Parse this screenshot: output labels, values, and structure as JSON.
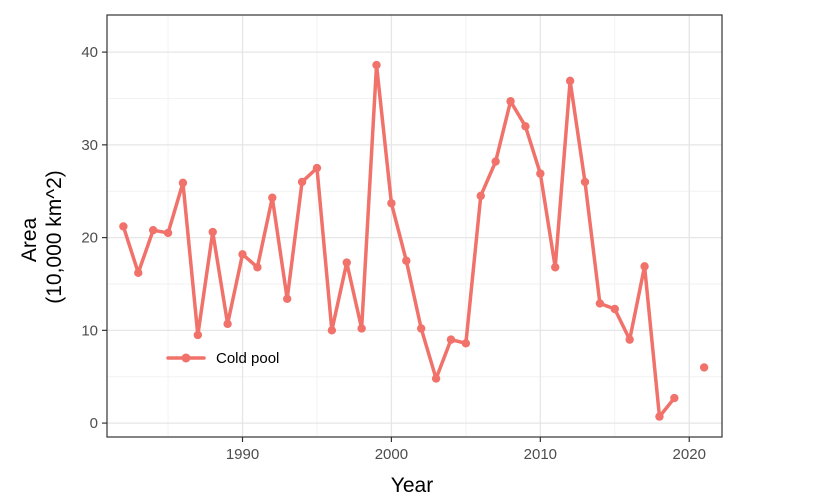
{
  "chart_data": {
    "type": "line",
    "xlabel": "Year",
    "ylabel_lines": [
      "Area",
      "(10,000 km^2)"
    ],
    "xlim": [
      1980.9,
      2022.2
    ],
    "ylim": [
      -1.5,
      44
    ],
    "x_ticks": [
      1990,
      2000,
      2010,
      2020
    ],
    "y_ticks": [
      0,
      10,
      20,
      30,
      40
    ],
    "grid": true,
    "legend_position": "bottom-left inside",
    "series": [
      {
        "name": "Cold pool",
        "color": "#f0726a",
        "segments": [
          [
            [
              1982,
              21.2
            ],
            [
              1983,
              16.2
            ],
            [
              1984,
              20.8
            ],
            [
              1985,
              20.5
            ],
            [
              1986,
              25.9
            ],
            [
              1987,
              9.5
            ],
            [
              1988,
              20.6
            ],
            [
              1989,
              10.7
            ],
            [
              1990,
              18.2
            ],
            [
              1991,
              16.8
            ],
            [
              1992,
              24.3
            ],
            [
              1993,
              13.4
            ],
            [
              1994,
              26.0
            ],
            [
              1995,
              27.5
            ],
            [
              1996,
              10.0
            ],
            [
              1997,
              17.3
            ],
            [
              1998,
              10.2
            ],
            [
              1999,
              38.6
            ],
            [
              2000,
              23.7
            ],
            [
              2001,
              17.5
            ],
            [
              2002,
              10.2
            ],
            [
              2003,
              4.8
            ],
            [
              2004,
              9.0
            ],
            [
              2005,
              8.6
            ],
            [
              2006,
              24.5
            ],
            [
              2007,
              28.2
            ],
            [
              2008,
              34.7
            ],
            [
              2009,
              32.0
            ],
            [
              2010,
              26.9
            ],
            [
              2011,
              16.8
            ],
            [
              2012,
              36.9
            ],
            [
              2013,
              26.0
            ],
            [
              2014,
              12.9
            ],
            [
              2015,
              12.3
            ],
            [
              2016,
              9.0
            ],
            [
              2017,
              16.9
            ],
            [
              2018,
              0.7
            ],
            [
              2019,
              2.7
            ]
          ],
          [
            [
              2021,
              6.0
            ]
          ]
        ]
      }
    ]
  }
}
